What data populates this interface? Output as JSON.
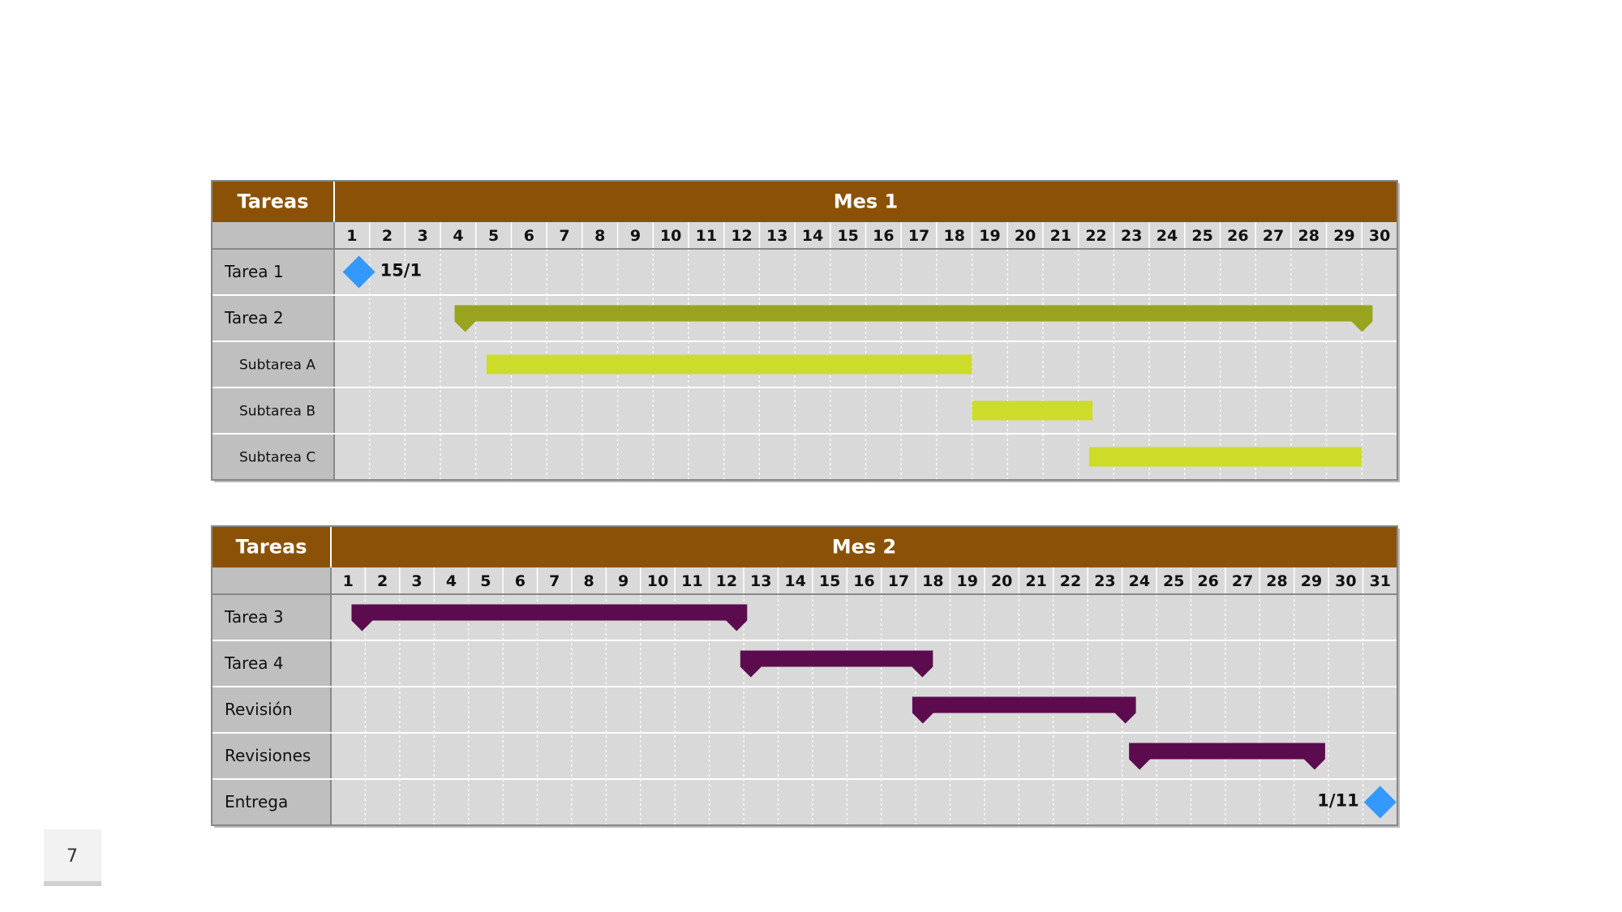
{
  "page_number": "7",
  "tables": [
    {
      "header_label": "Tareas",
      "period": "Mes 1",
      "days": [
        1,
        2,
        3,
        4,
        5,
        6,
        7,
        8,
        9,
        10,
        11,
        12,
        13,
        14,
        15,
        16,
        17,
        18,
        19,
        20,
        21,
        22,
        23,
        24,
        25,
        26,
        27,
        28,
        29,
        30
      ],
      "rows": [
        {
          "label": "Tarea 1",
          "milestone": 1.7,
          "milestone_label": "15/1",
          "color": "#3399ff"
        },
        {
          "label": "Tarea 2",
          "start": 4.4,
          "end": 30.3,
          "kind": "summary",
          "color": "#98a41e"
        },
        {
          "label": "Subtarea A",
          "start": 5.3,
          "end": 19,
          "kind": "subtask",
          "color": "#cddc29"
        },
        {
          "label": "Subtarea B",
          "start": 19,
          "end": 22.4,
          "kind": "subtask",
          "color": "#cddc29"
        },
        {
          "label": "Subtarea C",
          "start": 22.3,
          "end": 30,
          "kind": "subtask",
          "color": "#cddc29"
        }
      ]
    },
    {
      "header_label": "Tareas",
      "period": "Mes 2",
      "days": [
        1,
        2,
        3,
        4,
        5,
        6,
        7,
        8,
        9,
        10,
        11,
        12,
        13,
        14,
        15,
        16,
        17,
        18,
        19,
        20,
        21,
        22,
        23,
        24,
        25,
        26,
        27,
        28,
        29,
        30,
        31
      ],
      "rows": [
        {
          "label": "Tarea 3",
          "start": 1.6,
          "end": 13.1,
          "kind": "summary",
          "color": "#5c0c4e"
        },
        {
          "label": "Tarea 4",
          "start": 12.9,
          "end": 18.5,
          "kind": "summary",
          "color": "#5c0c4e"
        },
        {
          "label": "Revisión",
          "start": 17.9,
          "end": 24.4,
          "kind": "summary",
          "color": "#5c0c4e"
        },
        {
          "label": "Revisiones",
          "start": 24.2,
          "end": 29.9,
          "kind": "summary",
          "color": "#5c0c4e"
        },
        {
          "label": "Entrega",
          "milestone": 31.5,
          "milestone_label": "1/11",
          "color": "#3399ff",
          "label_side": "left"
        }
      ]
    }
  ]
}
